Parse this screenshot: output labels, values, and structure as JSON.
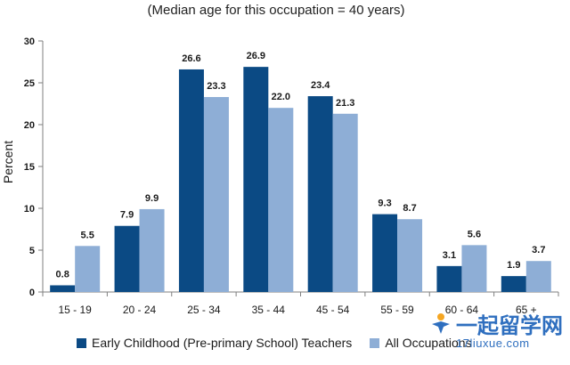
{
  "subtitle": "(Median age for this occupation = 40 years)",
  "watermark": {
    "title": "一起留学网",
    "url": "17liuxue.com"
  },
  "chart_data": {
    "type": "bar",
    "ylabel": "Percent",
    "xlabel": "",
    "ylim": [
      0,
      30
    ],
    "yticks": [
      0,
      5,
      10,
      15,
      20,
      25,
      30
    ],
    "grid": false,
    "legend_position": "bottom",
    "categories": [
      "15 - 19",
      "20 - 24",
      "25 - 34",
      "35 - 44",
      "45 - 54",
      "55 - 59",
      "60 - 64",
      "65 +"
    ],
    "series": [
      {
        "name": "Early Childhood (Pre-primary School) Teachers",
        "color": "#0b4a84",
        "values": [
          0.8,
          7.9,
          26.6,
          26.9,
          23.4,
          9.3,
          3.1,
          1.9
        ],
        "labels": [
          "0.8",
          "7.9",
          "26.6",
          "26.9",
          "23.4",
          "9.3",
          "3.1",
          "1.9"
        ]
      },
      {
        "name": "All Occupations",
        "color": "#8eaed6",
        "values": [
          5.5,
          9.9,
          23.3,
          22.0,
          21.3,
          8.7,
          5.6,
          3.7
        ],
        "labels": [
          "5.5",
          "9.9",
          "23.3",
          "22.0",
          "21.3",
          "8.7",
          "5.6",
          "3.7"
        ]
      }
    ]
  }
}
